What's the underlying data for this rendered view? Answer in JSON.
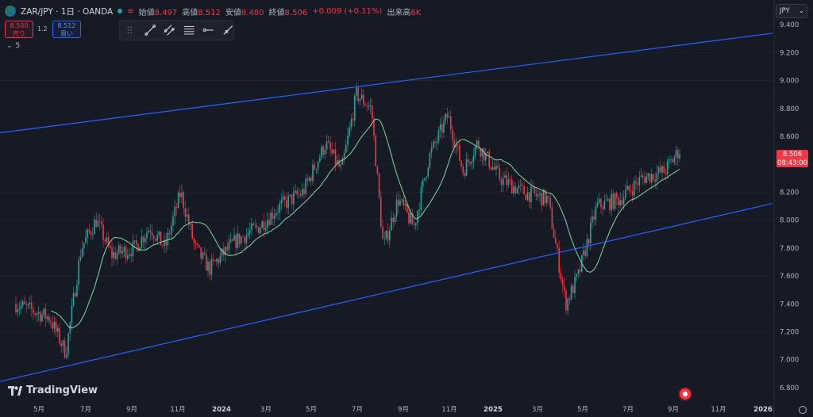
{
  "header": {
    "symbol": "ZAR/JPY · 1日 · OANDA",
    "open_label": "始値",
    "open_value": "8.497",
    "high_label": "高値",
    "high_value": "8.512",
    "low_label": "安値",
    "low_value": "8.480",
    "close_label": "終値",
    "close_value": "8.506",
    "change": "+0.009 (+0.11%)",
    "volume_label": "出来高",
    "volume_value": "6K"
  },
  "trade": {
    "sell_price": "8.500",
    "sell_label": "売り",
    "spread": "1.2",
    "buy_price": "8.512",
    "buy_label": "買い"
  },
  "indicators": {
    "count": "5"
  },
  "currency": "JPY",
  "last_price": {
    "price": "8.506",
    "countdown": "08:43:00"
  },
  "logo_text": "TradingView",
  "colors": {
    "background": "#161a25",
    "channel_line": "#2962ff",
    "up_candle": "#26a69a",
    "down_candle": "#f23645",
    "moving_average": "#7fd6a3"
  },
  "chart_data": {
    "type": "candlestick",
    "title": "ZAR/JPY · 1日 · OANDA",
    "ylabel": "JPY",
    "ylim": [
      6.72,
      9.52
    ],
    "yticks": [
      "9.400",
      "9.200",
      "9.000",
      "8.800",
      "8.600",
      "8.400",
      "8.200",
      "8.000",
      "7.800",
      "7.600",
      "7.400",
      "7.200",
      "7.000",
      "6.800"
    ],
    "xticks": [
      "5月",
      "7月",
      "9月",
      "11月",
      "2024",
      "3月",
      "5月",
      "7月",
      "9月",
      "11月",
      "2025",
      "3月",
      "5月",
      "7月",
      "9月",
      "11月",
      "2026"
    ],
    "bold_ticks": [
      "2024",
      "2025",
      "2026"
    ],
    "price_path_approx": [
      {
        "date": "2023-04-01",
        "close": 7.4
      },
      {
        "date": "2023-05-15",
        "close": 7.3
      },
      {
        "date": "2023-06-05",
        "close": 7.05
      },
      {
        "date": "2023-06-25",
        "close": 7.8
      },
      {
        "date": "2023-07-15",
        "close": 8.0
      },
      {
        "date": "2023-08-05",
        "close": 7.75
      },
      {
        "date": "2023-09-05",
        "close": 7.8
      },
      {
        "date": "2023-09-25",
        "close": 7.95
      },
      {
        "date": "2023-10-15",
        "close": 7.8
      },
      {
        "date": "2023-11-05",
        "close": 8.2
      },
      {
        "date": "2023-11-25",
        "close": 7.8
      },
      {
        "date": "2023-12-15",
        "close": 7.65
      },
      {
        "date": "2024-01-20",
        "close": 7.85
      },
      {
        "date": "2024-02-20",
        "close": 7.95
      },
      {
        "date": "2024-03-20",
        "close": 8.1
      },
      {
        "date": "2024-04-20",
        "close": 8.2
      },
      {
        "date": "2024-05-20",
        "close": 8.55
      },
      {
        "date": "2024-06-10",
        "close": 8.35
      },
      {
        "date": "2024-06-30",
        "close": 8.9
      },
      {
        "date": "2024-07-20",
        "close": 8.8
      },
      {
        "date": "2024-08-05",
        "close": 7.8
      },
      {
        "date": "2024-08-25",
        "close": 8.15
      },
      {
        "date": "2024-09-15",
        "close": 7.95
      },
      {
        "date": "2024-10-05",
        "close": 8.45
      },
      {
        "date": "2024-10-30",
        "close": 8.75
      },
      {
        "date": "2024-11-20",
        "close": 8.35
      },
      {
        "date": "2024-12-10",
        "close": 8.55
      },
      {
        "date": "2025-01-10",
        "close": 8.3
      },
      {
        "date": "2025-02-10",
        "close": 8.2
      },
      {
        "date": "2025-03-15",
        "close": 8.15
      },
      {
        "date": "2025-04-08",
        "close": 7.4
      },
      {
        "date": "2025-04-25",
        "close": 7.6
      },
      {
        "date": "2025-05-20",
        "close": 8.1
      },
      {
        "date": "2025-06-20",
        "close": 8.15
      },
      {
        "date": "2025-07-20",
        "close": 8.3
      },
      {
        "date": "2025-08-20",
        "close": 8.35
      },
      {
        "date": "2025-09-10",
        "close": 8.506
      }
    ],
    "channel_upper": [
      {
        "date": "2023-04-01",
        "value": 8.64
      },
      {
        "date": "2026-01-31",
        "value": 9.35
      }
    ],
    "channel_lower": [
      {
        "date": "2023-04-01",
        "value": 6.87
      },
      {
        "date": "2026-01-31",
        "value": 8.14
      }
    ]
  }
}
